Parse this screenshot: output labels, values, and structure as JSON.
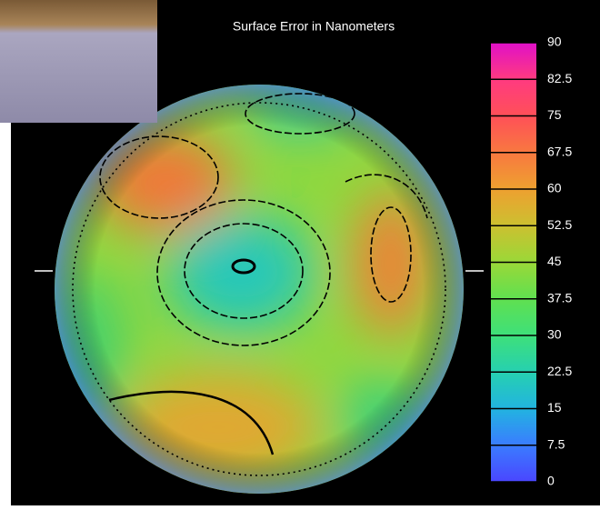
{
  "chart_data": {
    "type": "surface-map",
    "title": "Surface Error in Nanometers",
    "zlim": [
      0,
      90
    ],
    "zticks": [
      0,
      7.5,
      15,
      22.5,
      30,
      37.5,
      45,
      52.5,
      60,
      67.5,
      75,
      82.5,
      90
    ],
    "colorscale": [
      "#4a46ff",
      "#3a7cff",
      "#22b4e0",
      "#26d0b0",
      "#3ee07a",
      "#60e050",
      "#9ad838",
      "#ccc030",
      "#eea030",
      "#f87840",
      "#ff5058",
      "#ff3a80",
      "#e010c8"
    ]
  }
}
